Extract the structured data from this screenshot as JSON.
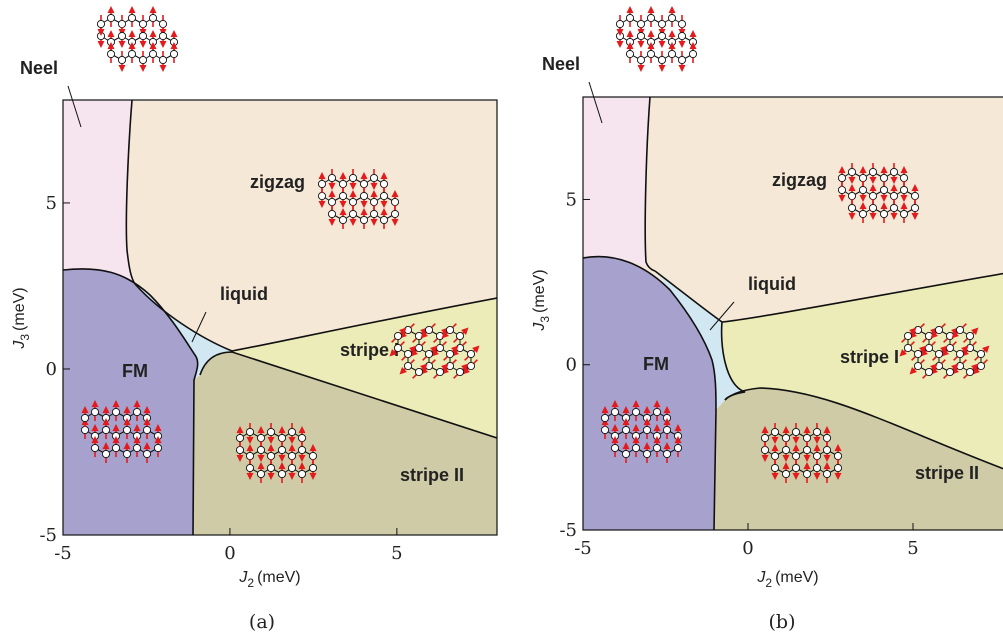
{
  "panels": [
    {
      "caption": "(a)",
      "x_label": {
        "symbol": "J",
        "subscript": "2",
        "unit": "(meV)"
      },
      "y_label": {
        "symbol": "J",
        "subscript": "3",
        "unit": "(meV)"
      },
      "xlim": [
        -5,
        8
      ],
      "ylim": [
        -5,
        8.1
      ],
      "xticks": [
        -5,
        0,
        5
      ],
      "yticks": [
        -5,
        0,
        5
      ],
      "regions": [
        "Neel",
        "zigzag",
        "liquid",
        "FM",
        "stripe I",
        "stripe II"
      ]
    },
    {
      "caption": "(b)",
      "x_label": {
        "symbol": "J",
        "subscript": "2",
        "unit": "(meV)"
      },
      "y_label": {
        "symbol": "J",
        "subscript": "3",
        "unit": "(meV)"
      },
      "xlim": [
        -5,
        8
      ],
      "ylim": [
        -5,
        8.1
      ],
      "xticks": [
        -5,
        0,
        5
      ],
      "yticks": [
        -5,
        0,
        5
      ],
      "regions": [
        "Neel",
        "zigzag",
        "liquid",
        "FM",
        "stripe I",
        "stripe II"
      ]
    }
  ]
}
